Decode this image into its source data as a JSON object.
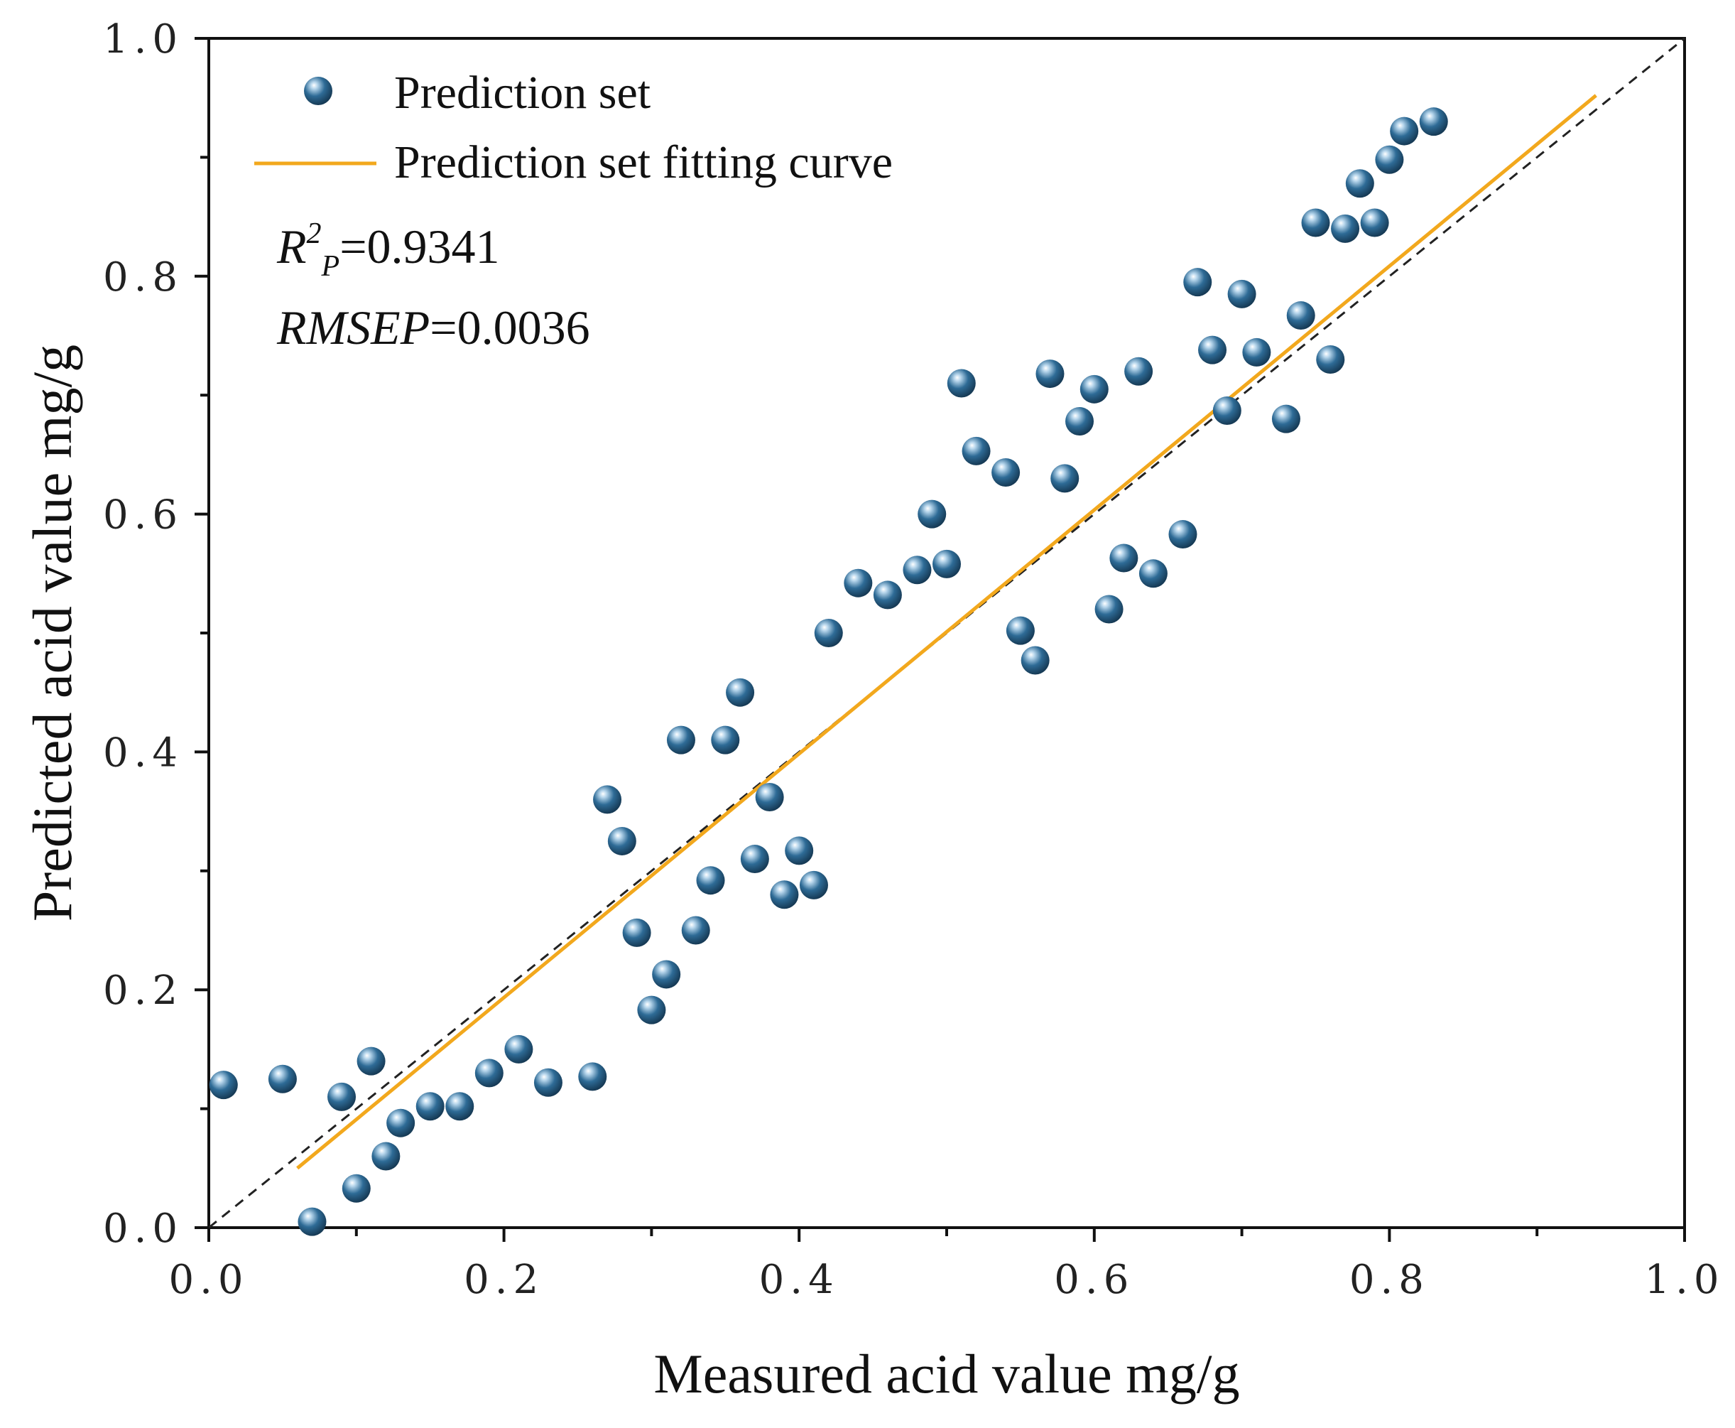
{
  "chart_data": {
    "type": "scatter",
    "xlabel": "Measured acid value mg/g",
    "ylabel": "Predicted acid value mg/g",
    "xlim": [
      0.0,
      1.0
    ],
    "ylim": [
      0.0,
      1.0
    ],
    "xticks": [
      "0.0",
      "0.2",
      "0.4",
      "0.6",
      "0.8",
      "1.0"
    ],
    "yticks": [
      "0.0",
      "0.2",
      "0.4",
      "0.6",
      "0.8",
      "1.0"
    ],
    "grid": false,
    "legend_position": "top-left",
    "colors": {
      "points": "#2e6b96",
      "fit": "#f2a81d",
      "reference": "#222222"
    },
    "legend": {
      "points_label": "Prediction set",
      "fit_label": "Prediction set fitting curve"
    },
    "stats": {
      "r2_symbol": "R",
      "r2_sup": "2",
      "r2_sub": "P",
      "r2_value": "=0.9341",
      "rmsep_label": "RMSEP",
      "rmsep_value": "=0.0036"
    },
    "series": [
      {
        "name": "Prediction set",
        "x": [
          0.01,
          0.05,
          0.07,
          0.09,
          0.1,
          0.11,
          0.12,
          0.13,
          0.15,
          0.17,
          0.19,
          0.21,
          0.23,
          0.26,
          0.27,
          0.28,
          0.29,
          0.3,
          0.31,
          0.32,
          0.33,
          0.34,
          0.35,
          0.36,
          0.37,
          0.38,
          0.39,
          0.4,
          0.41,
          0.42,
          0.44,
          0.46,
          0.48,
          0.49,
          0.5,
          0.51,
          0.52,
          0.54,
          0.55,
          0.56,
          0.57,
          0.58,
          0.59,
          0.6,
          0.61,
          0.62,
          0.63,
          0.64,
          0.66,
          0.67,
          0.68,
          0.69,
          0.7,
          0.71,
          0.73,
          0.74,
          0.75,
          0.76,
          0.77,
          0.78,
          0.79,
          0.8,
          0.81,
          0.83
        ],
        "y": [
          0.12,
          0.125,
          0.005,
          0.11,
          0.033,
          0.14,
          0.06,
          0.088,
          0.102,
          0.102,
          0.13,
          0.15,
          0.122,
          0.127,
          0.36,
          0.325,
          0.248,
          0.183,
          0.213,
          0.41,
          0.25,
          0.292,
          0.41,
          0.45,
          0.31,
          0.362,
          0.28,
          0.317,
          0.288,
          0.5,
          0.542,
          0.532,
          0.553,
          0.6,
          0.558,
          0.71,
          0.653,
          0.635,
          0.502,
          0.477,
          0.718,
          0.63,
          0.678,
          0.705,
          0.52,
          0.563,
          0.72,
          0.55,
          0.583,
          0.795,
          0.738,
          0.687,
          0.785,
          0.736,
          0.68,
          0.767,
          0.845,
          0.73,
          0.84,
          0.878,
          0.845,
          0.898,
          0.922,
          0.93
        ]
      }
    ],
    "fit_line": {
      "x": [
        0.06,
        0.94
      ],
      "y": [
        0.05,
        0.952
      ]
    },
    "reference_line": {
      "x": [
        0.0,
        1.0
      ],
      "y": [
        0.0,
        1.0
      ]
    }
  }
}
